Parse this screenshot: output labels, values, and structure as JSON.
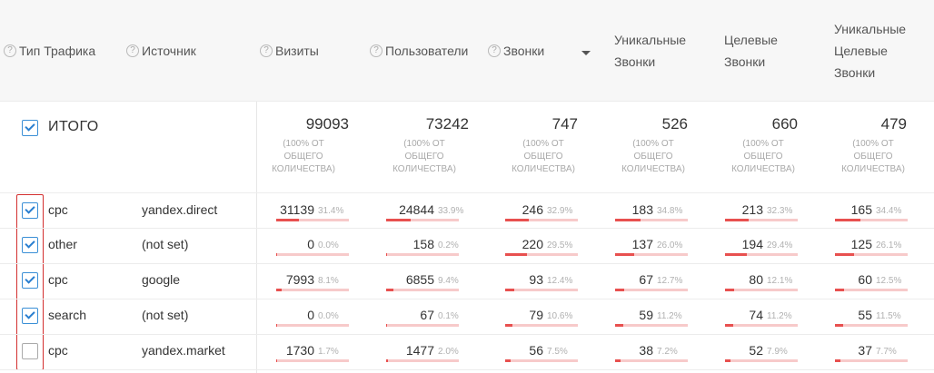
{
  "header": {
    "help_glyph": "?",
    "columns": [
      {
        "label": "Тип Трафика"
      },
      {
        "label": "Источник"
      },
      {
        "label": "Визиты"
      },
      {
        "label": "Пользователи"
      },
      {
        "label": "Звонки"
      },
      {
        "label": "Уникальные Звонки",
        "lines": [
          "Уникальные",
          "Звонки"
        ]
      },
      {
        "label": "Целевые Звонки",
        "lines": [
          "Целевые",
          "Звонки"
        ]
      },
      {
        "label": "Уникальные Целевые Звонки",
        "lines": [
          "Уникальные",
          "Целевые",
          "Звонки"
        ]
      }
    ],
    "sorted_column": "Звонки"
  },
  "total": {
    "label": "ИТОГО",
    "checked": true,
    "values": [
      "99093",
      "73242",
      "747",
      "526",
      "660",
      "479"
    ],
    "note_lines": [
      "(100% ОТ",
      "ОБЩЕГО",
      "КОЛИЧЕСТВА)"
    ]
  },
  "rows": [
    {
      "type": "cpc",
      "source": "yandex.direct",
      "checked": true,
      "metrics": [
        {
          "value": "31139",
          "pct": "31.4%",
          "share": 0.314
        },
        {
          "value": "24844",
          "pct": "33.9%",
          "share": 0.339
        },
        {
          "value": "246",
          "pct": "32.9%",
          "share": 0.329
        },
        {
          "value": "183",
          "pct": "34.8%",
          "share": 0.348
        },
        {
          "value": "213",
          "pct": "32.3%",
          "share": 0.323
        },
        {
          "value": "165",
          "pct": "34.4%",
          "share": 0.344
        }
      ]
    },
    {
      "type": "other",
      "source": "(not set)",
      "checked": true,
      "metrics": [
        {
          "value": "0",
          "pct": "0.0%",
          "share": 0.0
        },
        {
          "value": "158",
          "pct": "0.2%",
          "share": 0.002
        },
        {
          "value": "220",
          "pct": "29.5%",
          "share": 0.295
        },
        {
          "value": "137",
          "pct": "26.0%",
          "share": 0.26
        },
        {
          "value": "194",
          "pct": "29.4%",
          "share": 0.294
        },
        {
          "value": "125",
          "pct": "26.1%",
          "share": 0.261
        }
      ]
    },
    {
      "type": "cpc",
      "source": "google",
      "checked": true,
      "metrics": [
        {
          "value": "7993",
          "pct": "8.1%",
          "share": 0.081
        },
        {
          "value": "6855",
          "pct": "9.4%",
          "share": 0.094
        },
        {
          "value": "93",
          "pct": "12.4%",
          "share": 0.124
        },
        {
          "value": "67",
          "pct": "12.7%",
          "share": 0.127
        },
        {
          "value": "80",
          "pct": "12.1%",
          "share": 0.121
        },
        {
          "value": "60",
          "pct": "12.5%",
          "share": 0.125
        }
      ]
    },
    {
      "type": "search",
      "source": "(not set)",
      "checked": true,
      "metrics": [
        {
          "value": "0",
          "pct": "0.0%",
          "share": 0.0
        },
        {
          "value": "67",
          "pct": "0.1%",
          "share": 0.001
        },
        {
          "value": "79",
          "pct": "10.6%",
          "share": 0.106
        },
        {
          "value": "59",
          "pct": "11.2%",
          "share": 0.112
        },
        {
          "value": "74",
          "pct": "11.2%",
          "share": 0.112
        },
        {
          "value": "55",
          "pct": "11.5%",
          "share": 0.115
        }
      ]
    },
    {
      "type": "cpc",
      "source": "yandex.market",
      "checked": false,
      "metrics": [
        {
          "value": "1730",
          "pct": "1.7%",
          "share": 0.017
        },
        {
          "value": "1477",
          "pct": "2.0%",
          "share": 0.02
        },
        {
          "value": "56",
          "pct": "7.5%",
          "share": 0.075
        },
        {
          "value": "38",
          "pct": "7.2%",
          "share": 0.072
        },
        {
          "value": "52",
          "pct": "7.9%",
          "share": 0.079
        },
        {
          "value": "37",
          "pct": "7.7%",
          "share": 0.077
        }
      ]
    }
  ],
  "colors": {
    "accent": "#2a7fd0",
    "bar": "#e8504f",
    "bar_track": "#f7caca",
    "highlight_frame": "#d32f2f"
  }
}
